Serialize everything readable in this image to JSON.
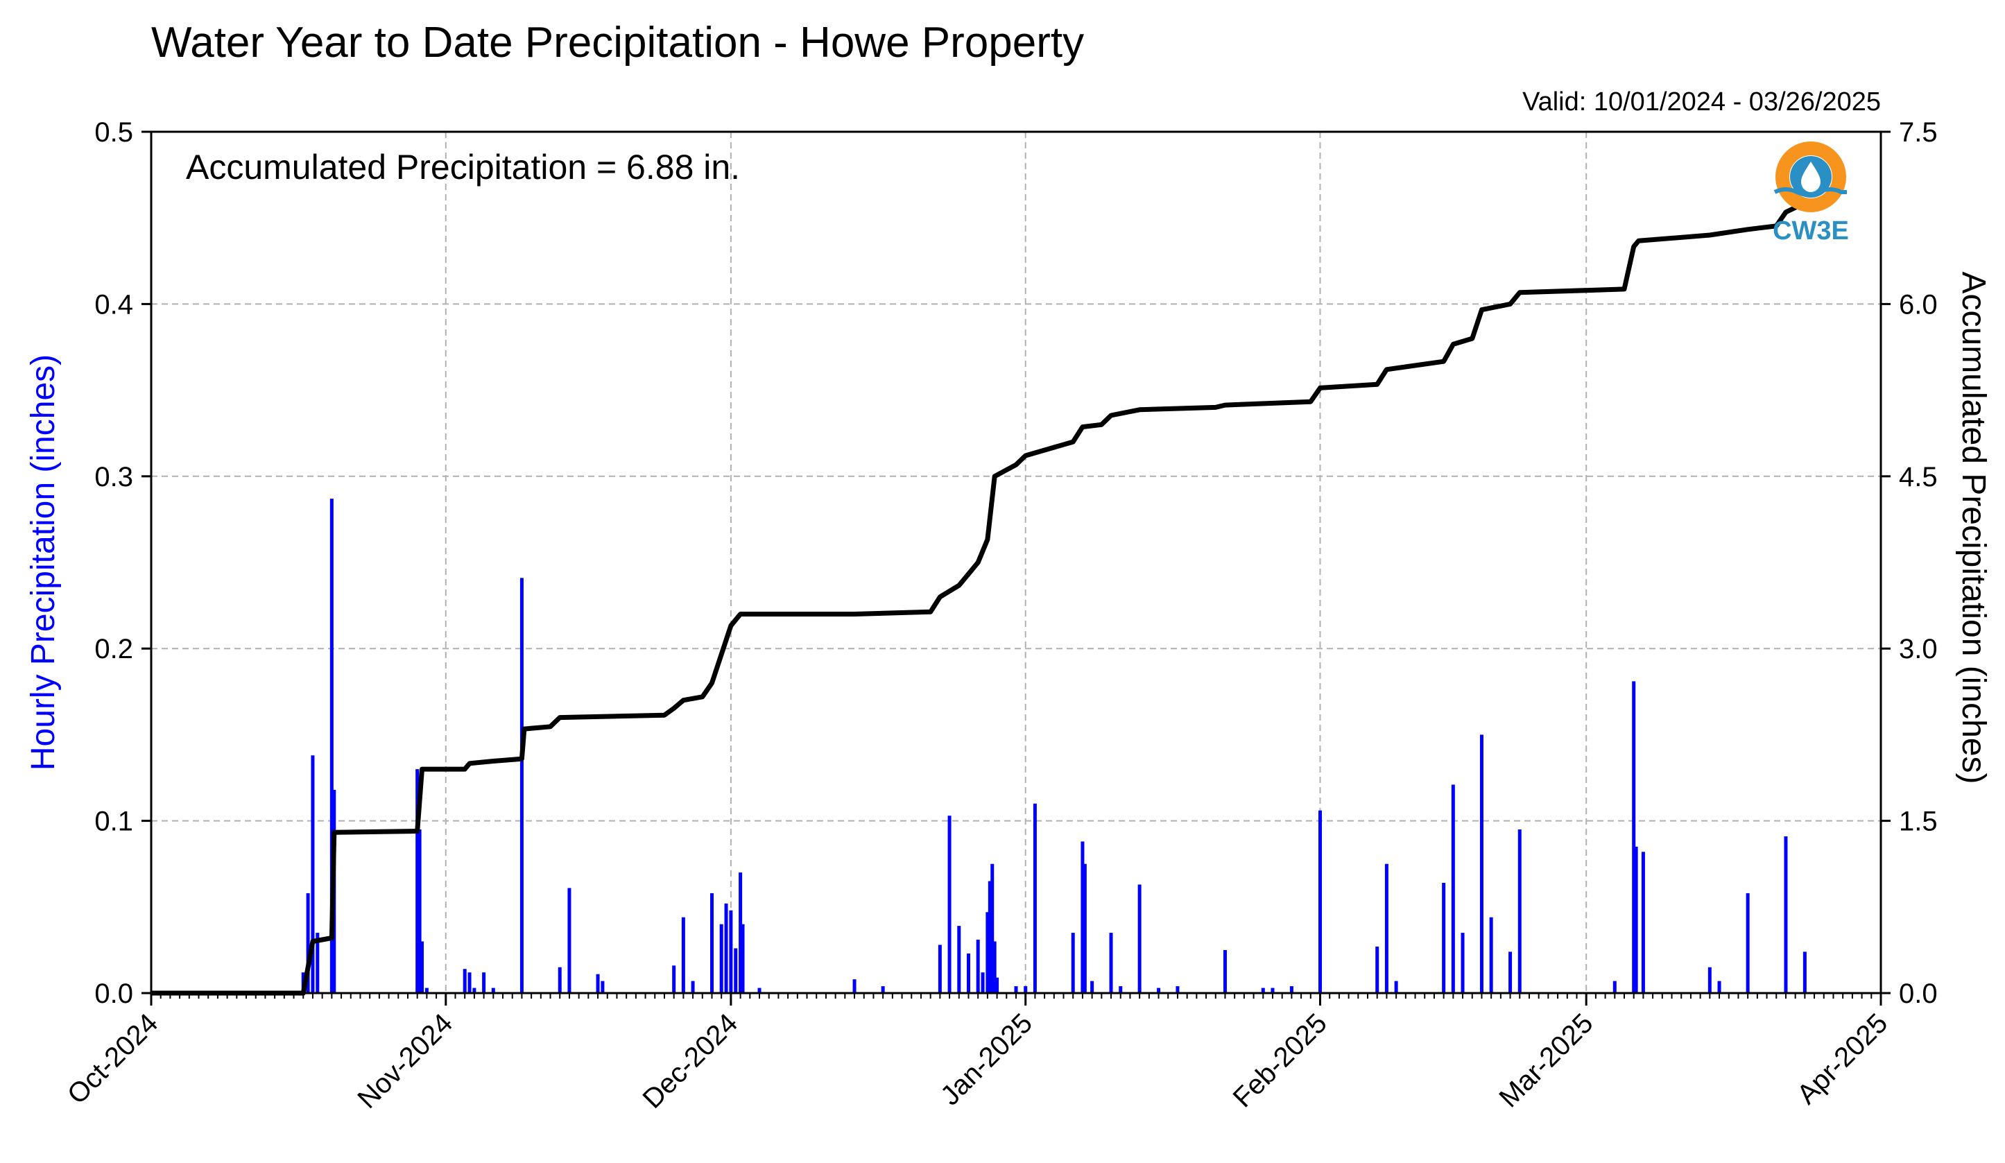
{
  "chart_data": {
    "type": "bar+line",
    "title": "Water Year to Date Precipitation - Howe Property",
    "subtitle": "Valid: 10/01/2024 - 03/26/2025",
    "annotation": "Accumulated Precipitation = 6.88 in.",
    "logo_text": "CW3E",
    "ylabel_left": "Hourly Precipitation (inches)",
    "ylabel_right": "Accumulated Precipitation (inches)",
    "xlim": [
      "2024-10-01",
      "2025-04-01"
    ],
    "ylim_left": [
      0,
      0.5
    ],
    "ylim_right": [
      0,
      7.5
    ],
    "x_ticks": [
      {
        "date": "2024-10-01",
        "label": "Oct-2024"
      },
      {
        "date": "2024-11-01",
        "label": "Nov-2024"
      },
      {
        "date": "2024-12-01",
        "label": "Dec-2024"
      },
      {
        "date": "2025-01-01",
        "label": "Jan-2025"
      },
      {
        "date": "2025-02-01",
        "label": "Feb-2025"
      },
      {
        "date": "2025-03-01",
        "label": "Mar-2025"
      },
      {
        "date": "2025-04-01",
        "label": "Apr-2025"
      }
    ],
    "y_ticks_left": [
      "0.0",
      "0.1",
      "0.2",
      "0.3",
      "0.4",
      "0.5"
    ],
    "y_ticks_right": [
      "0.0",
      "1.5",
      "3.0",
      "4.5",
      "6.0",
      "7.5"
    ],
    "grid": true,
    "colors": {
      "hourly": "#0000ff",
      "accumulated": "#000000",
      "grid": "#b0b0b0",
      "left_label": "#0000ff",
      "logo_orange": "#f7941d",
      "logo_blue": "#2a8fc4"
    },
    "series": [
      {
        "name": "Hourly Precipitation",
        "type": "bar",
        "axis": "left",
        "points": [
          [
            "2024-10-17",
            0.012
          ],
          [
            "2024-10-17 12:00",
            0.058
          ],
          [
            "2024-10-18",
            0.138
          ],
          [
            "2024-10-18 12:00",
            0.035
          ],
          [
            "2024-10-20",
            0.287
          ],
          [
            "2024-10-20 06:00",
            0.118
          ],
          [
            "2024-10-29",
            0.13
          ],
          [
            "2024-10-29 06:00",
            0.095
          ],
          [
            "2024-10-29 12:00",
            0.03
          ],
          [
            "2024-10-30",
            0.003
          ],
          [
            "2024-11-03",
            0.014
          ],
          [
            "2024-11-03 12:00",
            0.012
          ],
          [
            "2024-11-04",
            0.003
          ],
          [
            "2024-11-05",
            0.012
          ],
          [
            "2024-11-06",
            0.003
          ],
          [
            "2024-11-09",
            0.241
          ],
          [
            "2024-11-13",
            0.015
          ],
          [
            "2024-11-14",
            0.061
          ],
          [
            "2024-11-17",
            0.011
          ],
          [
            "2024-11-17 12:00",
            0.007
          ],
          [
            "2024-11-25",
            0.016
          ],
          [
            "2024-11-26",
            0.044
          ],
          [
            "2024-11-27",
            0.007
          ],
          [
            "2024-11-29",
            0.058
          ],
          [
            "2024-11-30",
            0.04
          ],
          [
            "2024-11-30 12:00",
            0.052
          ],
          [
            "2024-12-01",
            0.048
          ],
          [
            "2024-12-01 12:00",
            0.026
          ],
          [
            "2024-12-02",
            0.07
          ],
          [
            "2024-12-02 06:00",
            0.04
          ],
          [
            "2024-12-04",
            0.003
          ],
          [
            "2024-12-14",
            0.008
          ],
          [
            "2024-12-17",
            0.004
          ],
          [
            "2024-12-23",
            0.028
          ],
          [
            "2024-12-24",
            0.103
          ],
          [
            "2024-12-25",
            0.039
          ],
          [
            "2024-12-26",
            0.023
          ],
          [
            "2024-12-27",
            0.031
          ],
          [
            "2024-12-27 12:00",
            0.012
          ],
          [
            "2024-12-28",
            0.047
          ],
          [
            "2024-12-28 06:00",
            0.065
          ],
          [
            "2024-12-28 12:00",
            0.075
          ],
          [
            "2024-12-28 18:00",
            0.03
          ],
          [
            "2024-12-29",
            0.009
          ],
          [
            "2024-12-31",
            0.004
          ],
          [
            "2025-01-01",
            0.004
          ],
          [
            "2025-01-02",
            0.11
          ],
          [
            "2025-01-06",
            0.035
          ],
          [
            "2025-01-07",
            0.088
          ],
          [
            "2025-01-07 06:00",
            0.075
          ],
          [
            "2025-01-08",
            0.007
          ],
          [
            "2025-01-10",
            0.035
          ],
          [
            "2025-01-11",
            0.004
          ],
          [
            "2025-01-13",
            0.063
          ],
          [
            "2025-01-15",
            0.003
          ],
          [
            "2025-01-17",
            0.004
          ],
          [
            "2025-01-22",
            0.025
          ],
          [
            "2025-01-26",
            0.003
          ],
          [
            "2025-01-27",
            0.003
          ],
          [
            "2025-01-29",
            0.004
          ],
          [
            "2025-02-01",
            0.106
          ],
          [
            "2025-02-07",
            0.027
          ],
          [
            "2025-02-08",
            0.075
          ],
          [
            "2025-02-09",
            0.007
          ],
          [
            "2025-02-14",
            0.064
          ],
          [
            "2025-02-15",
            0.121
          ],
          [
            "2025-02-16",
            0.035
          ],
          [
            "2025-02-18",
            0.15
          ],
          [
            "2025-02-19",
            0.044
          ],
          [
            "2025-02-21",
            0.024
          ],
          [
            "2025-02-22",
            0.095
          ],
          [
            "2025-03-04",
            0.007
          ],
          [
            "2025-03-06",
            0.181
          ],
          [
            "2025-03-06 06:00",
            0.085
          ],
          [
            "2025-03-07",
            0.082
          ],
          [
            "2025-03-14",
            0.015
          ],
          [
            "2025-03-15",
            0.007
          ],
          [
            "2025-03-18",
            0.058
          ],
          [
            "2025-03-22",
            0.091
          ],
          [
            "2025-03-24",
            0.024
          ]
        ]
      },
      {
        "name": "Accumulated Precipitation",
        "type": "step-line",
        "axis": "right",
        "points": [
          [
            "2024-10-01",
            0.0
          ],
          [
            "2024-10-17",
            0.0
          ],
          [
            "2024-10-18",
            0.45
          ],
          [
            "2024-10-20",
            0.48
          ],
          [
            "2024-10-20 06:00",
            1.4
          ],
          [
            "2024-10-29",
            1.41
          ],
          [
            "2024-10-29 12:00",
            1.95
          ],
          [
            "2024-11-03",
            1.95
          ],
          [
            "2024-11-03 12:00",
            2.0
          ],
          [
            "2024-11-06",
            2.02
          ],
          [
            "2024-11-09",
            2.04
          ],
          [
            "2024-11-09 06:00",
            2.3
          ],
          [
            "2024-11-12",
            2.32
          ],
          [
            "2024-11-13",
            2.4
          ],
          [
            "2024-11-24",
            2.42
          ],
          [
            "2024-11-25",
            2.48
          ],
          [
            "2024-11-26",
            2.55
          ],
          [
            "2024-11-28",
            2.58
          ],
          [
            "2024-11-29",
            2.7
          ],
          [
            "2024-11-30",
            2.95
          ],
          [
            "2024-12-01",
            3.2
          ],
          [
            "2024-12-02",
            3.3
          ],
          [
            "2024-12-14",
            3.3
          ],
          [
            "2024-12-22",
            3.32
          ],
          [
            "2024-12-23",
            3.45
          ],
          [
            "2024-12-24",
            3.5
          ],
          [
            "2024-12-25",
            3.55
          ],
          [
            "2024-12-26",
            3.65
          ],
          [
            "2024-12-27",
            3.75
          ],
          [
            "2024-12-28",
            3.95
          ],
          [
            "2024-12-28 18:00",
            4.5
          ],
          [
            "2024-12-31",
            4.6
          ],
          [
            "2025-01-01",
            4.68
          ],
          [
            "2025-01-06",
            4.8
          ],
          [
            "2025-01-07",
            4.93
          ],
          [
            "2025-01-09",
            4.95
          ],
          [
            "2025-01-10",
            5.03
          ],
          [
            "2025-01-13",
            5.08
          ],
          [
            "2025-01-21",
            5.1
          ],
          [
            "2025-01-22",
            5.12
          ],
          [
            "2025-01-31",
            5.15
          ],
          [
            "2025-02-01",
            5.27
          ],
          [
            "2025-02-07",
            5.3
          ],
          [
            "2025-02-08",
            5.43
          ],
          [
            "2025-02-14",
            5.5
          ],
          [
            "2025-02-15",
            5.65
          ],
          [
            "2025-02-17",
            5.7
          ],
          [
            "2025-02-18",
            5.95
          ],
          [
            "2025-02-21",
            6.0
          ],
          [
            "2025-02-22",
            6.1
          ],
          [
            "2025-03-05",
            6.13
          ],
          [
            "2025-03-06",
            6.5
          ],
          [
            "2025-03-06 12:00",
            6.55
          ],
          [
            "2025-03-14",
            6.6
          ],
          [
            "2025-03-18",
            6.65
          ],
          [
            "2025-03-21",
            6.68
          ],
          [
            "2025-03-22",
            6.8
          ],
          [
            "2025-03-24",
            6.88
          ],
          [
            "2025-03-26",
            6.88
          ]
        ]
      }
    ]
  }
}
